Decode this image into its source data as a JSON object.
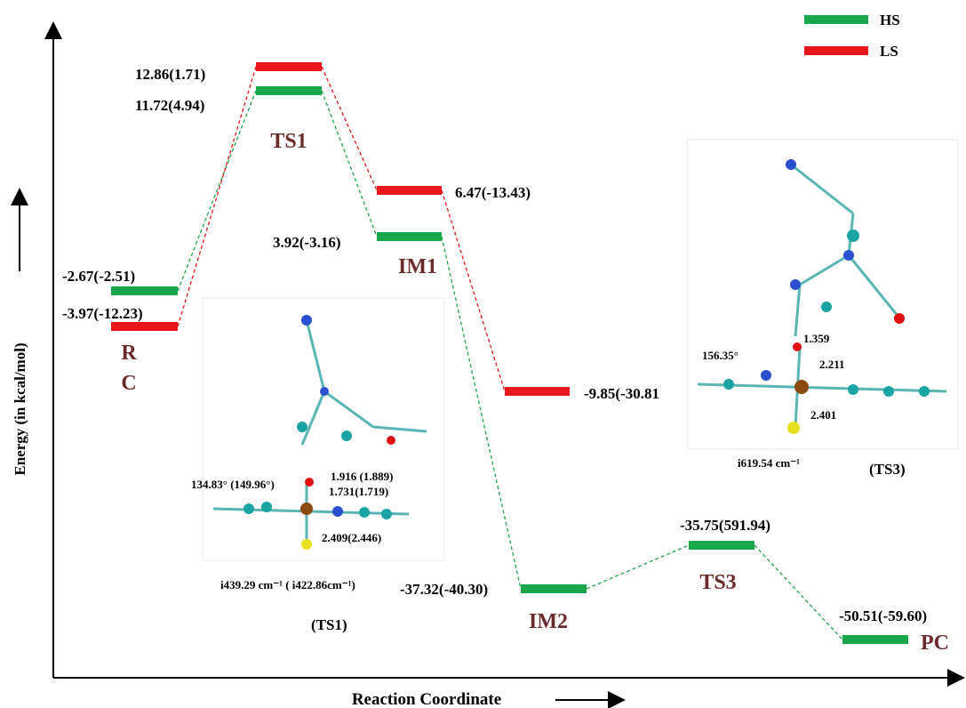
{
  "legend": {
    "items": [
      "HS",
      "LS"
    ]
  },
  "axes": {
    "y_label": "Energy (in kcal/mol)",
    "x_label": "Reaction Coordinate"
  },
  "states": [
    {
      "name_lines": [
        "R",
        "C"
      ],
      "hs_label": "-2.67(-2.51)",
      "ls_label": "-3.97(-12.23)"
    },
    {
      "name_lines": [
        "TS1"
      ],
      "hs_label": "11.72(4.94)",
      "ls_label": "12.86(1.71)"
    },
    {
      "name_lines": [
        "IM1"
      ],
      "hs_label": "3.92(-3.16)",
      "ls_label": "6.47(-13.43)"
    },
    {
      "name_lines": [
        "IM2"
      ],
      "hs_label": "-37.32(-40.30)",
      "ls_label": "-9.85(-30.81"
    },
    {
      "name_lines": [
        "TS3"
      ],
      "hs_label": "-35.75(591.94)"
    },
    {
      "name_lines": [
        "PC"
      ],
      "hs_label": "-50.51(-59.60)"
    }
  ],
  "insets": [
    {
      "angle": "134.83° (149.96°)",
      "bond1": "1.916 (1.889)",
      "bond2": "1.731(1.719)",
      "bond3": "2.409(2.446)",
      "frequency": "i439.29 cm⁻¹ ( i422.86cm⁻¹)",
      "caption": "(TS1)"
    },
    {
      "angle": "156.35°",
      "bond1": "1.359",
      "bond2": "2.211",
      "bond3": "2.401",
      "frequency": "i619.54 cm⁻¹",
      "caption": "(TS3)"
    }
  ]
}
